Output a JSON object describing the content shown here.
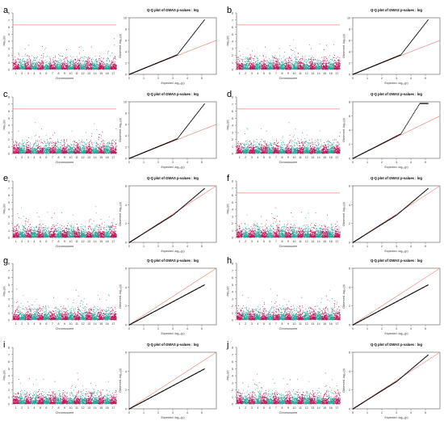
{
  "figure": {
    "colors": {
      "odd_chromosome": "#c2185b",
      "even_chromosome": "#26a69a",
      "threshold_line": "#f28b82",
      "qq_points": "#000000",
      "qq_reference_line": "#f28b82",
      "axis": "#555555"
    },
    "panels": [
      {
        "label": "a",
        "manhattan_threshold": 6.3,
        "qq_curve": "high",
        "y_max_qq": 10
      },
      {
        "label": "b",
        "manhattan_threshold": 6.3,
        "qq_curve": "high",
        "y_max_qq": 10
      },
      {
        "label": "c",
        "manhattan_threshold": 6.3,
        "qq_curve": "high",
        "y_max_qq": 10
      },
      {
        "label": "d",
        "manhattan_threshold": 6.3,
        "qq_curve": "high",
        "y_max_qq": 8
      },
      {
        "label": "e",
        "manhattan_threshold": null,
        "qq_curve": "mid",
        "y_max_qq": 6
      },
      {
        "label": "f",
        "manhattan_threshold": 6.3,
        "qq_curve": "mid",
        "y_max_qq": 6
      },
      {
        "label": "g",
        "manhattan_threshold": null,
        "qq_curve": "low",
        "y_max_qq": 6
      },
      {
        "label": "h",
        "manhattan_threshold": null,
        "qq_curve": "low",
        "y_max_qq": 6
      },
      {
        "label": "i",
        "manhattan_threshold": null,
        "qq_curve": "low",
        "y_max_qq": 6
      },
      {
        "label": "j",
        "manhattan_threshold": null,
        "qq_curve": "mid",
        "y_max_qq": 6
      }
    ]
  },
  "text": {
    "qq_title": "Q-Q plot of GWAS p-values : log",
    "qq_xlabel": "Expected  -log₁₀(p)",
    "qq_ylabel": "Observed  -log₁₀(p)",
    "manhattan_ylabel": "-log₁₀(p)",
    "manhattan_xlabel": "Chromosome",
    "chromosomes": [
      "1",
      "2",
      "3",
      "4",
      "5",
      "6",
      "7",
      "8",
      "9",
      "10",
      "11",
      "12",
      "13",
      "14",
      "15",
      "16",
      "17"
    ]
  },
  "chart_data": [
    {
      "type": "scatter",
      "subtype": "manhattan",
      "panels": [
        "a",
        "b",
        "c",
        "d",
        "e",
        "f",
        "g",
        "h",
        "i",
        "j"
      ],
      "xlabel": "Chromosome",
      "ylabel": "-log10(p)",
      "categories": [
        "1",
        "2",
        "3",
        "4",
        "5",
        "6",
        "7",
        "8",
        "9",
        "10",
        "11",
        "12",
        "13",
        "14",
        "15",
        "16",
        "17"
      ],
      "series": [
        {
          "name": "",
          "values": []
        }
      ],
      "ylim": [
        0,
        8
      ],
      "grid": false
    },
    {
      "type": "scatter",
      "subtype": "qq",
      "title": "Q-Q plot of GWAS p-values : log",
      "xlabel": "Expected -log10(p)",
      "ylabel": "Observed -log10(p)",
      "xlim": [
        0,
        6
      ],
      "ylim": [
        0,
        10
      ],
      "grid": false
    }
  ]
}
